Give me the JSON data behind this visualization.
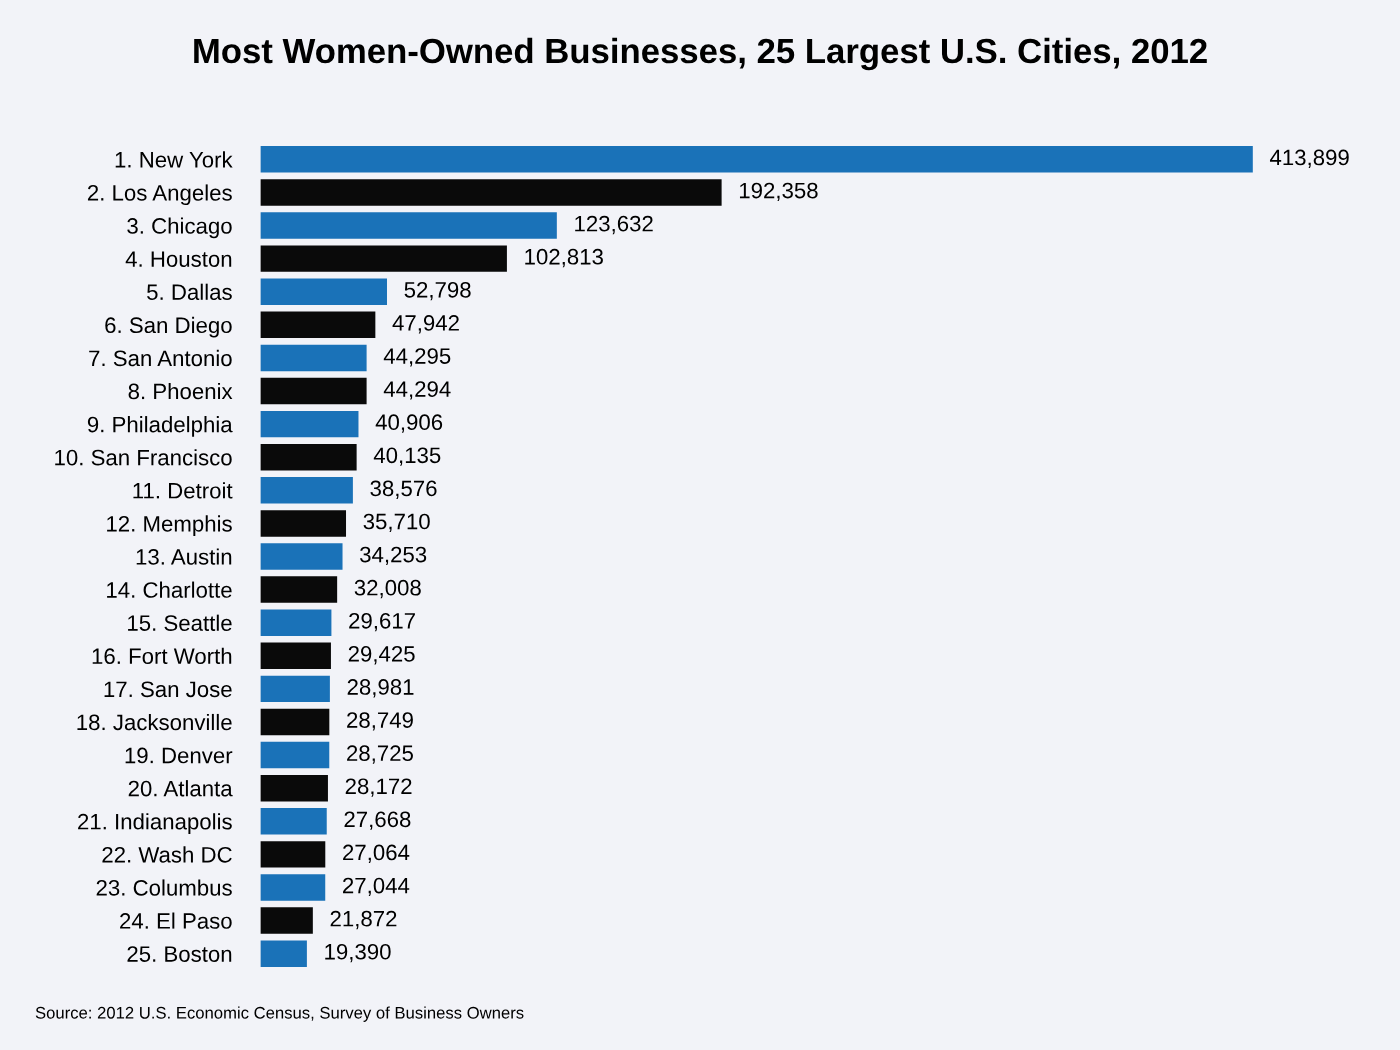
{
  "chart_data": {
    "type": "bar",
    "orientation": "horizontal",
    "title": "Most Women-Owned Businesses, 25 Largest U.S. Cities, 2012",
    "categories": [
      "1. New York",
      "2. Los Angeles",
      "3. Chicago",
      "4. Houston",
      "5. Dallas",
      "6. San Diego",
      "7. San Antonio",
      "8. Phoenix",
      "9. Philadelphia",
      "10. San Francisco",
      "11. Detroit",
      "12. Memphis",
      "13. Austin",
      "14. Charlotte",
      "15. Seattle",
      "16. Fort Worth",
      "17. San Jose",
      "18. Jacksonville",
      "19. Denver",
      "20. Atlanta",
      "21. Indianapolis",
      "22. Wash DC",
      "23. Columbus",
      "24. El Paso",
      "25. Boston"
    ],
    "values": [
      413899,
      192358,
      123632,
      102813,
      52798,
      47942,
      44295,
      44294,
      40906,
      40135,
      38576,
      35710,
      34253,
      32008,
      29617,
      29425,
      28981,
      28749,
      28725,
      28172,
      27668,
      27064,
      27044,
      21872,
      19390
    ],
    "colors": [
      "#1a72b8",
      "#0a0a0a",
      "#1a72b8",
      "#0a0a0a",
      "#1a72b8",
      "#0a0a0a",
      "#1a72b8",
      "#0a0a0a",
      "#1a72b8",
      "#0a0a0a",
      "#1a72b8",
      "#0a0a0a",
      "#1a72b8",
      "#0a0a0a",
      "#1a72b8",
      "#0a0a0a",
      "#1a72b8",
      "#0a0a0a",
      "#1a72b8",
      "#0a0a0a",
      "#1a72b8",
      "#0a0a0a",
      "#1a72b8",
      "#0a0a0a",
      "#1a72b8"
    ],
    "value_labels": [
      "413,899",
      "192,358",
      "123,632",
      "102,813",
      "52,798",
      "47,942",
      "44,295",
      "44,294",
      "40,906",
      "40,135",
      "38,576",
      "35,710",
      "34,253",
      "32,008",
      "29,617",
      "29,425",
      "28,981",
      "28,749",
      "28,725",
      "28,172",
      "27,668",
      "27,064",
      "27,044",
      "21,872",
      "19,390"
    ],
    "annotations": [
      "Source: 2012 U.S. Economic Census, Survey of Business Owners"
    ]
  }
}
